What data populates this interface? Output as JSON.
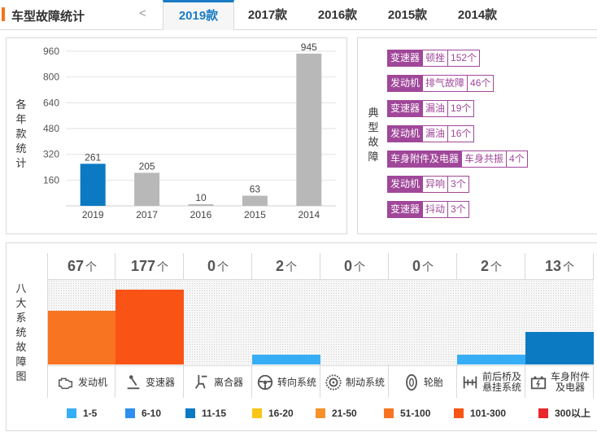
{
  "header": {
    "title": "车型故障统计",
    "prev_glyph": "<",
    "tabs": [
      {
        "label": "2019款",
        "active": true
      },
      {
        "label": "2017款",
        "active": false
      },
      {
        "label": "2016款",
        "active": false
      },
      {
        "label": "2015款",
        "active": false
      },
      {
        "label": "2014款",
        "active": false
      }
    ]
  },
  "chart_panel": {
    "ylabel_chars": [
      "各",
      "年",
      "款",
      "统",
      "计"
    ]
  },
  "chart_data": {
    "type": "bar",
    "categories": [
      "2019",
      "2017",
      "2016",
      "2015",
      "2014"
    ],
    "values": [
      261,
      205,
      10,
      63,
      945
    ],
    "ylim": [
      0,
      1000
    ],
    "yticks": [
      160,
      320,
      480,
      640,
      800,
      960
    ],
    "grid": true,
    "highlight_index": 0,
    "colors": {
      "highlight": "#0b7ac2",
      "default": "#b8b8b8"
    }
  },
  "fault_panel": {
    "label_chars": [
      "典",
      "型",
      "故",
      "障"
    ],
    "faults": [
      {
        "system": "变速器",
        "issue": "顿挫",
        "count": "152个"
      },
      {
        "system": "发动机",
        "issue": "排气故障",
        "count": "46个"
      },
      {
        "system": "变速器",
        "issue": "漏油",
        "count": "19个"
      },
      {
        "system": "发动机",
        "issue": "漏油",
        "count": "16个"
      },
      {
        "system": "车身附件及电器",
        "issue": "车身共振",
        "count": "4个"
      },
      {
        "system": "发动机",
        "issue": "异响",
        "count": "3个"
      },
      {
        "system": "变速器",
        "issue": "抖动",
        "count": "3个"
      }
    ],
    "color": "#a0479a"
  },
  "systems_panel": {
    "label_chars": [
      "八",
      "大",
      "系",
      "统",
      "故",
      "障",
      "图"
    ],
    "unit": "个",
    "systems": [
      {
        "name": "发动机",
        "name2": "",
        "count": 67,
        "color": "#f97420",
        "level": 0.63,
        "icon": "engine-icon"
      },
      {
        "name": "变速器",
        "name2": "",
        "count": 177,
        "color": "#fa5316",
        "level": 0.88,
        "icon": "gear-shift-icon"
      },
      {
        "name": "离合器",
        "name2": "",
        "count": 0,
        "color": "#ffffff",
        "level": 0,
        "icon": "clutch-pedal-icon"
      },
      {
        "name": "转向系统",
        "name2": "",
        "count": 2,
        "color": "#36aef5",
        "level": 0.12,
        "icon": "steering-wheel-icon"
      },
      {
        "name": "制动系统",
        "name2": "",
        "count": 0,
        "color": "#ffffff",
        "level": 0,
        "icon": "brake-disc-icon"
      },
      {
        "name": "轮胎",
        "name2": "",
        "count": 0,
        "color": "#ffffff",
        "level": 0,
        "icon": "tire-icon"
      },
      {
        "name": "前后桥及",
        "name2": "悬挂系统",
        "count": 2,
        "color": "#36aef5",
        "level": 0.12,
        "icon": "axle-icon"
      },
      {
        "name": "车身附件",
        "name2": "及电器",
        "count": 13,
        "color": "#0b7ac2",
        "level": 0.38,
        "icon": "battery-icon"
      }
    ],
    "legend": [
      {
        "label": "1-5",
        "color": "#36aef5"
      },
      {
        "label": "6-10",
        "color": "#2f8ff0"
      },
      {
        "label": "11-15",
        "color": "#0b7ac2"
      },
      {
        "label": "16-20",
        "color": "#f9c517"
      },
      {
        "label": "21-50",
        "color": "#f7922a"
      },
      {
        "label": "51-100",
        "color": "#f97420"
      },
      {
        "label": "101-300",
        "color": "#fa5316"
      },
      {
        "label": "300以上",
        "color": "#e8262b"
      }
    ]
  }
}
